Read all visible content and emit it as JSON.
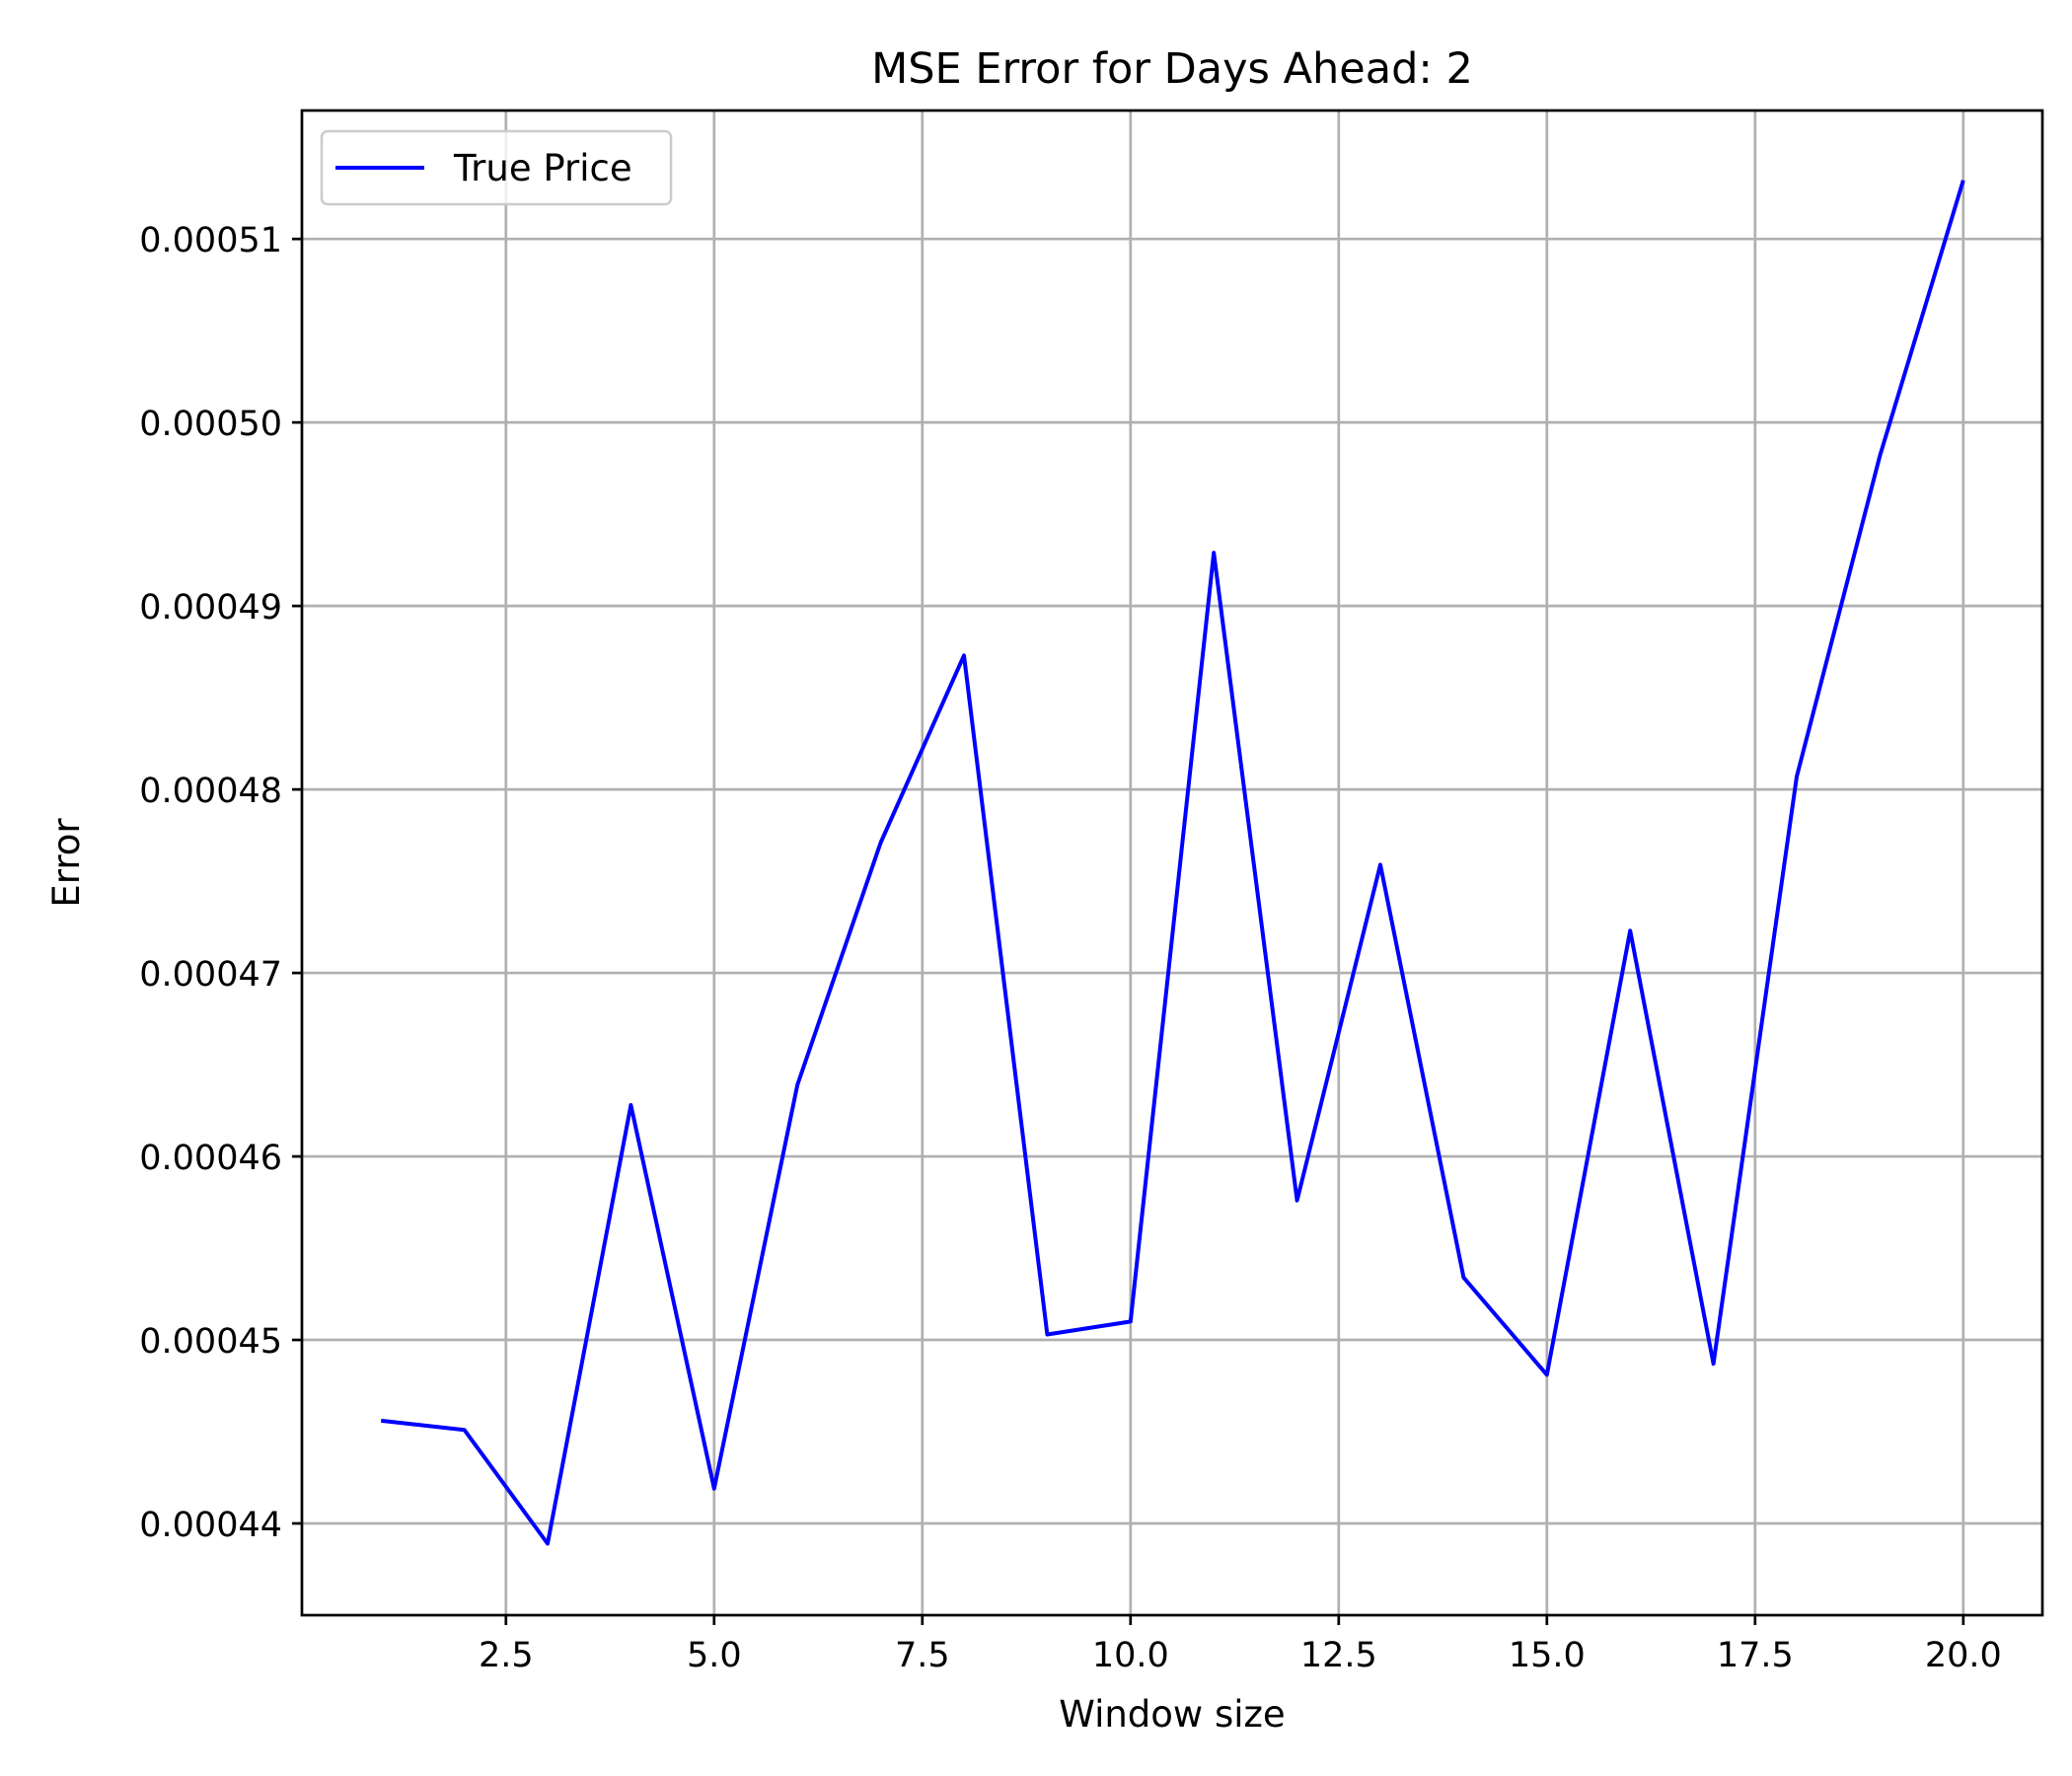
{
  "chart_data": {
    "type": "line",
    "title": "MSE Error for Days Ahead: 2",
    "xlabel": "Window size",
    "ylabel": "Error",
    "xlim": [
      0.05,
      20.95
    ],
    "ylim": [
      0.000435,
      0.000517
    ],
    "xticks": [
      2.5,
      5.0,
      7.5,
      10.0,
      12.5,
      15.0,
      17.5,
      20.0
    ],
    "xtick_labels": [
      "2.5",
      "5.0",
      "7.5",
      "10.0",
      "12.5",
      "15.0",
      "17.5",
      "20.0"
    ],
    "yticks": [
      0.00044,
      0.00045,
      0.00046,
      0.00047,
      0.00048,
      0.00049,
      0.0005,
      0.00051
    ],
    "ytick_labels": [
      "0.00044",
      "0.00045",
      "0.00046",
      "0.00047",
      "0.00048",
      "0.00049",
      "0.00050",
      "0.00051"
    ],
    "grid": true,
    "legend_position": "upper-left",
    "x": [
      1,
      2,
      3,
      4,
      5,
      6,
      7,
      8,
      9,
      10,
      11,
      12,
      13,
      14,
      15,
      16,
      17,
      18,
      19,
      20
    ],
    "series": [
      {
        "name": "True Price",
        "color": "#0000ff",
        "values": [
          0.0004456,
          0.0004451,
          0.0004389,
          0.0004628,
          0.0004419,
          0.0004639,
          0.0004771,
          0.0004873,
          0.0004503,
          0.000451,
          0.0004929,
          0.0004576,
          0.0004759,
          0.0004534,
          0.0004481,
          0.0004723,
          0.0004487,
          0.0004807,
          0.0004982,
          0.0005132
        ]
      }
    ]
  }
}
